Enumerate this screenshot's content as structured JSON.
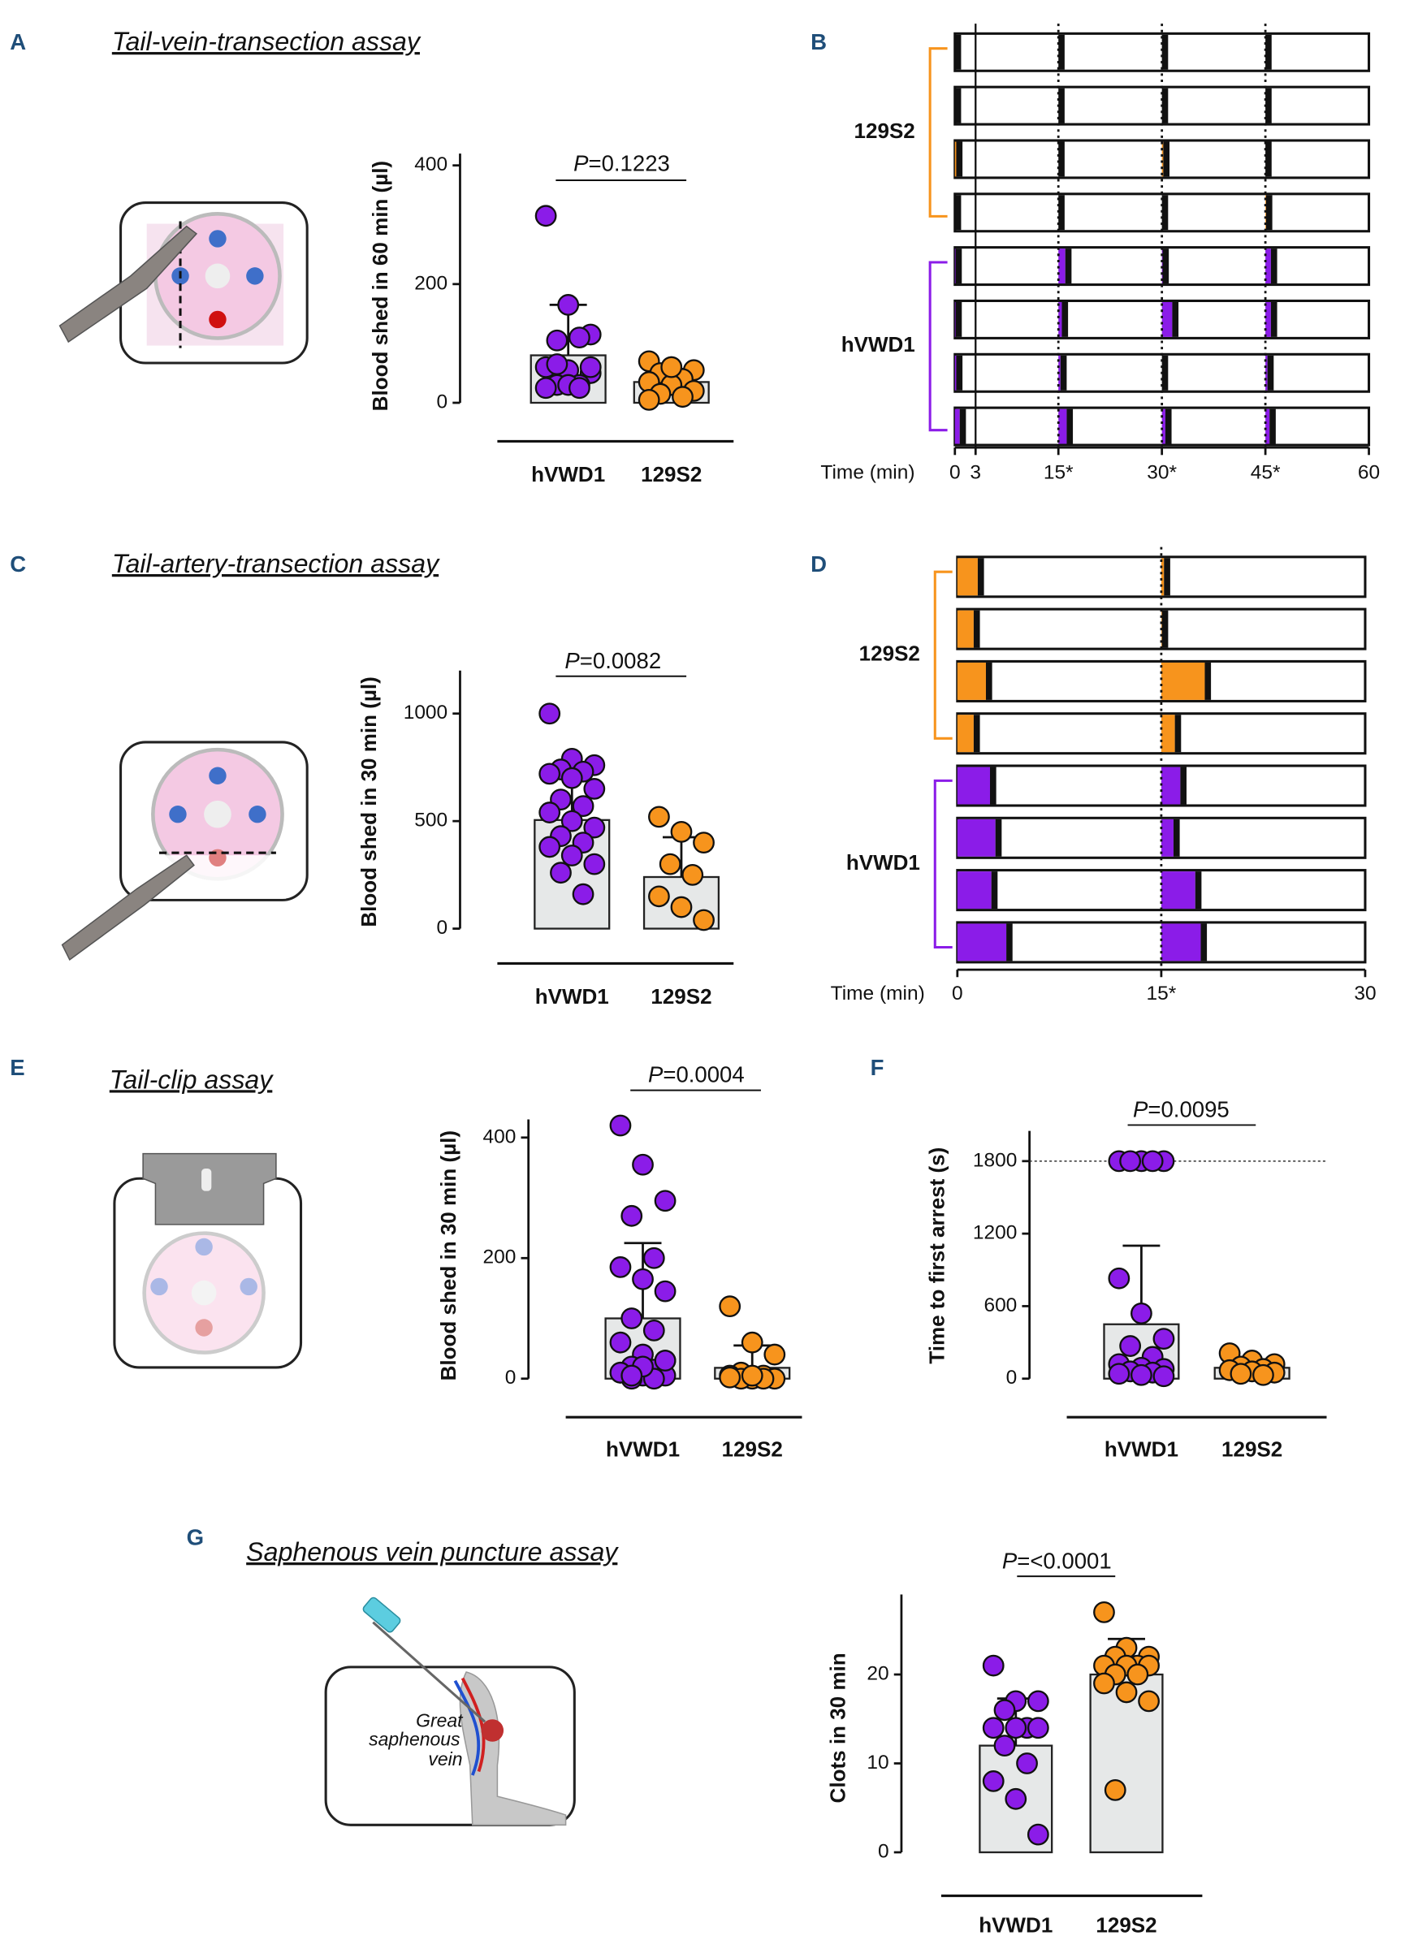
{
  "panels": [
    {
      "label": "A",
      "title": "Tail-vein-transection assay"
    },
    {
      "label": "B"
    },
    {
      "label": "C",
      "title": "Tail-artery-transection assay"
    },
    {
      "label": "D"
    },
    {
      "label": "E",
      "title": "Tail-clip assay"
    },
    {
      "label": "F"
    },
    {
      "label": "G",
      "title": "Saphenous vein puncture assay"
    }
  ],
  "illustration_labels": [
    "Great",
    "saphenous",
    "vein"
  ],
  "chart_data": [
    {
      "type": "dotbar",
      "ylabel": "Blood shed in 60 min (µl)",
      "categories": [
        "hVWD1",
        "129S2"
      ],
      "colors": [
        "#8b1ce8",
        "#f7941d"
      ],
      "values": [
        80,
        35
      ],
      "sd": [
        85,
        22
      ],
      "points": [
        [
          315,
          165,
          115,
          105,
          110,
          60,
          55,
          50,
          30,
          30,
          25,
          30,
          60,
          65,
          25
        ],
        [
          70,
          60,
          55,
          50,
          40,
          35,
          30,
          20,
          15,
          10,
          5,
          60
        ]
      ],
      "ylim": [
        0,
        420
      ],
      "yticks": [
        0,
        200,
        400
      ],
      "pvalue": {
        "prefix": "P",
        "text": "=0.1223"
      }
    },
    {
      "type": "timeline",
      "xlabel": "Time (min)",
      "xlim": [
        0,
        60
      ],
      "xticks": [
        0,
        3,
        {
          "value": 15,
          "label": "15*"
        },
        {
          "value": 30,
          "label": "30*"
        },
        {
          "value": 45,
          "label": "45*"
        },
        60
      ],
      "groups": [
        {
          "name": "129S2",
          "color": "#f7941d",
          "rows": [
            [
              [
                0,
                0
              ],
              [
                15,
                15
              ],
              [
                30,
                30
              ],
              [
                45,
                45
              ]
            ],
            [
              [
                0,
                0
              ],
              [
                15,
                15
              ],
              [
                30,
                30
              ],
              [
                45,
                45
              ]
            ],
            [
              [
                0,
                0.2
              ],
              [
                15,
                15
              ],
              [
                30,
                30.2
              ],
              [
                45,
                45
              ]
            ],
            [
              [
                0,
                0
              ],
              [
                15,
                15
              ],
              [
                30,
                30
              ],
              [
                45,
                45.1
              ]
            ]
          ]
        },
        {
          "name": "hVWD1",
          "color": "#8b1ce8",
          "rows": [
            [
              [
                0,
                0.1
              ],
              [
                15,
                16
              ],
              [
                30,
                30.1
              ],
              [
                45,
                45.8
              ]
            ],
            [
              [
                0,
                0.1
              ],
              [
                15,
                15.5
              ],
              [
                30,
                31.5
              ],
              [
                45,
                45.8
              ]
            ],
            [
              [
                0,
                0.2
              ],
              [
                15,
                15.3
              ],
              [
                30,
                30
              ],
              [
                45,
                45.3
              ]
            ],
            [
              [
                0,
                0.7
              ],
              [
                15,
                16.2
              ],
              [
                30,
                30.5
              ],
              [
                45,
                45.6
              ]
            ]
          ]
        }
      ]
    },
    {
      "type": "dotbar",
      "ylabel": "Blood shed in 30 min (µl)",
      "categories": [
        "hVWD1",
        "129S2"
      ],
      "colors": [
        "#8b1ce8",
        "#f7941d"
      ],
      "values": [
        505,
        240
      ],
      "sd": [
        235,
        185
      ],
      "points": [
        [
          1000,
          790,
          760,
          740,
          730,
          720,
          700,
          650,
          600,
          570,
          540,
          500,
          470,
          430,
          400,
          380,
          340,
          300,
          260,
          160
        ],
        [
          520,
          450,
          400,
          300,
          250,
          150,
          100,
          40
        ]
      ],
      "ylim": [
        0,
        1200
      ],
      "yticks": [
        0,
        500,
        1000
      ],
      "pvalue": {
        "prefix": "P",
        "text": "=0.0082"
      }
    },
    {
      "type": "timeline",
      "xlabel": "Time (min)",
      "xlim": [
        0,
        30
      ],
      "xticks": [
        0,
        {
          "value": 15,
          "label": "15*"
        },
        30
      ],
      "groups": [
        {
          "name": "129S2",
          "color": "#f7941d",
          "rows": [
            [
              [
                0,
                1.5
              ],
              [
                15,
                15.2
              ]
            ],
            [
              [
                0,
                1.2
              ],
              [
                15,
                15.05
              ]
            ],
            [
              [
                0,
                2.1
              ],
              [
                15,
                18.2
              ]
            ],
            [
              [
                0,
                1.2
              ],
              [
                15,
                16
              ]
            ]
          ]
        },
        {
          "name": "hVWD1",
          "color": "#8b1ce8",
          "rows": [
            [
              [
                0,
                2.4
              ],
              [
                15,
                16.4
              ]
            ],
            [
              [
                0,
                2.8
              ],
              [
                15,
                15.9
              ]
            ],
            [
              [
                0,
                2.5
              ],
              [
                15,
                17.5
              ]
            ],
            [
              [
                0,
                3.6
              ],
              [
                15,
                17.9
              ]
            ]
          ]
        }
      ]
    },
    {
      "type": "dotbar",
      "ylabel": "Blood shed in 30 min (µl)",
      "categories": [
        "hVWD1",
        "129S2"
      ],
      "colors": [
        "#8b1ce8",
        "#f7941d"
      ],
      "values": [
        100,
        18
      ],
      "sd": [
        125,
        37
      ],
      "points": [
        [
          420,
          355,
          295,
          270,
          200,
          185,
          165,
          145,
          100,
          80,
          60,
          40,
          30,
          20,
          15,
          10,
          5,
          5,
          0,
          0,
          10,
          20,
          30,
          5
        ],
        [
          120,
          60,
          40,
          10,
          5,
          5,
          0,
          0,
          0,
          0,
          2,
          5
        ]
      ],
      "ylim": [
        0,
        430
      ],
      "yticks": [
        0,
        200,
        400
      ],
      "pvalue": {
        "prefix": "P",
        "text": "=0.0004"
      }
    },
    {
      "type": "dotbar",
      "ylabel": "Time to first arrest (s)",
      "categories": [
        "hVWD1",
        "129S2"
      ],
      "colors": [
        "#8b1ce8",
        "#f7941d"
      ],
      "values": [
        450,
        90
      ],
      "sd": [
        650,
        70
      ],
      "points": [
        [
          1800,
          1800,
          1800,
          1800,
          1800,
          830,
          540,
          330,
          270,
          180,
          120,
          90,
          80,
          60,
          50,
          40,
          30,
          20
        ],
        [
          210,
          150,
          120,
          100,
          80,
          70,
          60,
          50,
          40,
          30
        ]
      ],
      "ylim": [
        0,
        2050
      ],
      "yticks": [
        0,
        600,
        1200,
        1800
      ],
      "refline": 1800,
      "pvalue": {
        "prefix": "P",
        "text": "=0.0095"
      }
    },
    {
      "type": "dotbar",
      "ylabel": "Clots in 30 min",
      "categories": [
        "hVWD1",
        "129S2"
      ],
      "colors": [
        "#8b1ce8",
        "#f7941d"
      ],
      "values": [
        12,
        20
      ],
      "sd": [
        5.3,
        4
      ],
      "points": [
        [
          21,
          17,
          17,
          16,
          14,
          14,
          14,
          14,
          12,
          10,
          8,
          6,
          2
        ],
        [
          27,
          23,
          22,
          22,
          21,
          21,
          21,
          21,
          20,
          20,
          19,
          18,
          17,
          7
        ]
      ],
      "ylim": [
        0,
        29
      ],
      "yticks": [
        0,
        10,
        20
      ],
      "pvalue": {
        "prefix": "P",
        "text": "=<0.0001"
      }
    }
  ]
}
